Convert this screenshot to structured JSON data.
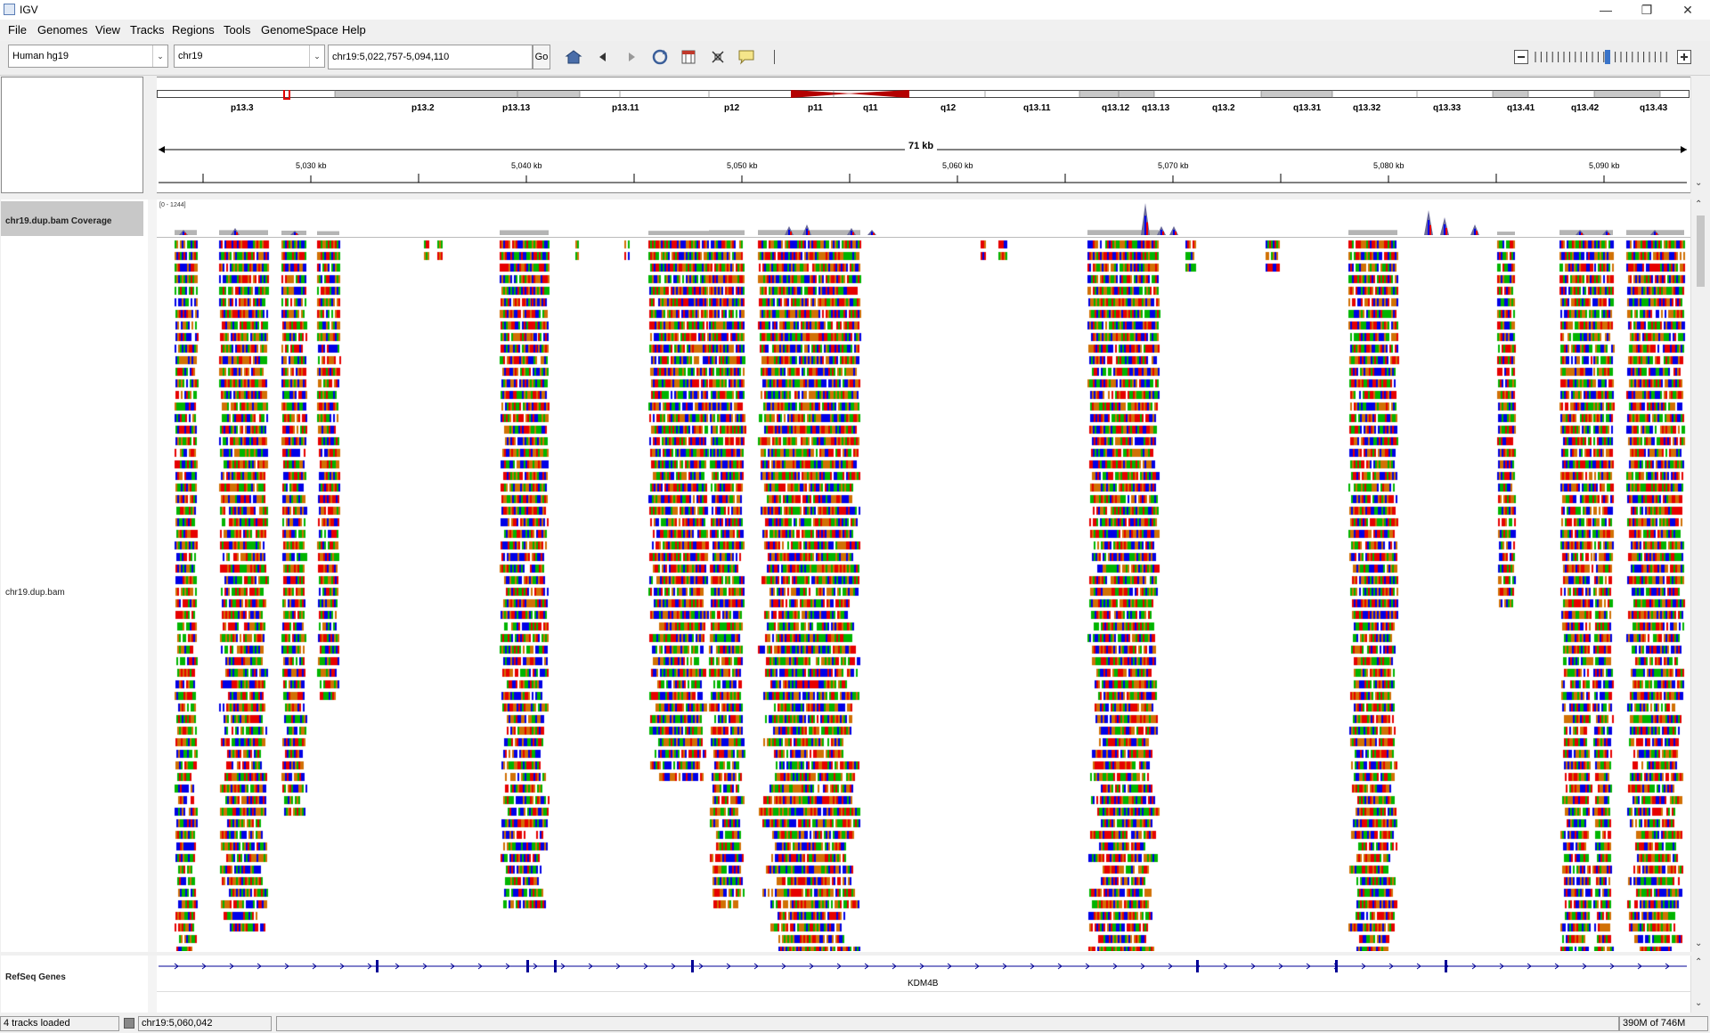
{
  "window": {
    "title": "IGV"
  },
  "menu": [
    "File",
    "Genomes",
    "View",
    "Tracks",
    "Regions",
    "Tools",
    "GenomeSpace",
    "Help"
  ],
  "toolbar": {
    "genome": "Human hg19",
    "chromosome": "chr19",
    "locus": "chr19:5,022,757-5,094,110",
    "go_label": "Go",
    "icons": [
      "home-icon",
      "back-icon",
      "forward-icon",
      "refresh-icon",
      "region-of-interest-icon",
      "resize-to-window-icon",
      "popup-info-icon"
    ]
  },
  "ideogram": {
    "bands": [
      "p13.3",
      "p13.2",
      "p13.13",
      "p13.11",
      "p12",
      "p11",
      "q11",
      "q12",
      "q13.11",
      "q13.12",
      "q13.13",
      "q13.2",
      "q13.31",
      "q13.32",
      "q13.33",
      "q13.41",
      "q13.42",
      "q13.43"
    ]
  },
  "ruler": {
    "span_label": "71 kb",
    "ticks": [
      "5,030 kb",
      "5,040 kb",
      "5,050 kb",
      "5,060 kb",
      "5,070 kb",
      "5,080 kb",
      "5,090 kb"
    ]
  },
  "tracks": {
    "coverage": {
      "name": "chr19.dup.bam Coverage",
      "range": "[0 - 1244]"
    },
    "alignment": {
      "name": "chr19.dup.bam"
    },
    "genes": {
      "name": "RefSeq Genes",
      "gene_label": "KDM4B"
    }
  },
  "status": {
    "tracks_loaded": "4 tracks loaded",
    "position": "chr19:5,060,042",
    "memory": "390M of 746M"
  },
  "colors": {
    "A": "#00b400",
    "C": "#0000e6",
    "G": "#d17105",
    "T": "#e60000",
    "gene": "#000096"
  }
}
